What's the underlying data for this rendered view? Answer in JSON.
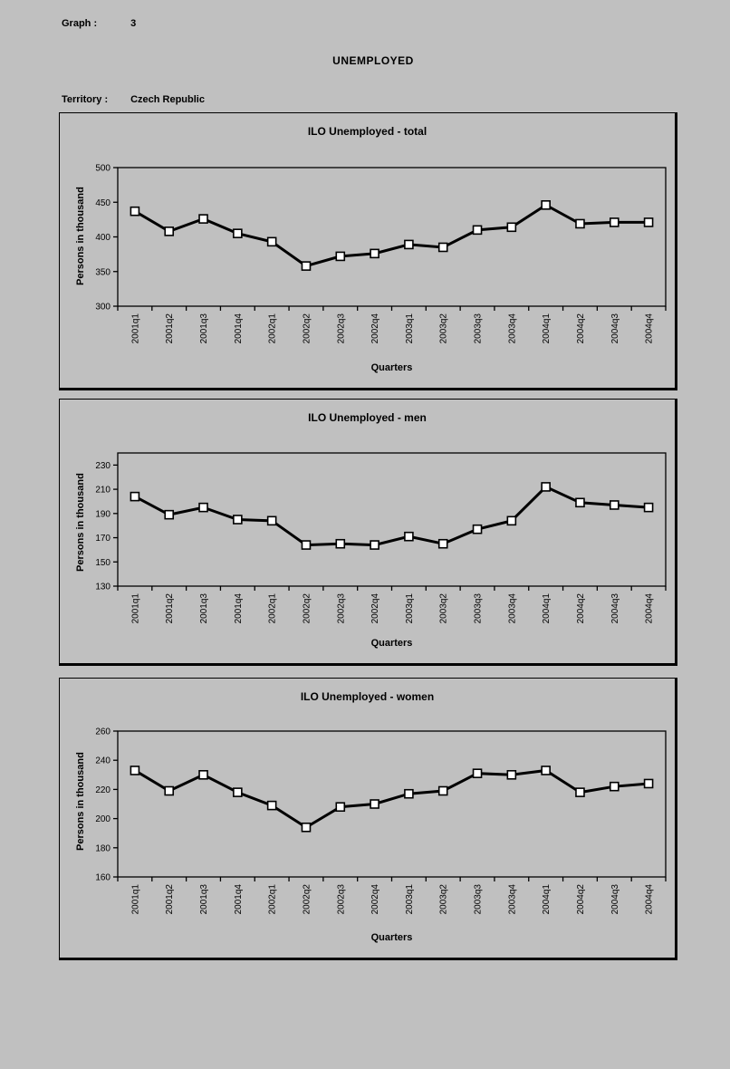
{
  "header": {
    "graph_label": "Graph :",
    "graph_number": "3",
    "title": "UNEMPLOYED",
    "territory_label": "Territory :",
    "territory_value": "Czech Republic"
  },
  "colors": {
    "background": "#c0c0c0",
    "foreground": "#000000",
    "line": "#000000",
    "marker_fill": "#ffffff"
  },
  "chart_data": [
    {
      "type": "line",
      "title": "ILO Unemployed - total",
      "xlabel": "Quarters",
      "ylabel": "Persons in thousand",
      "marker": "square",
      "grid": false,
      "legend": "none",
      "categories": [
        "2001q1",
        "2001q2",
        "2001q3",
        "2001q4",
        "2002q1",
        "2002q2",
        "2002q3",
        "2002q4",
        "2003q1",
        "2003q2",
        "2003q3",
        "2003q4",
        "2004q1",
        "2004q2",
        "2004q3",
        "2004q4"
      ],
      "values": [
        437,
        408,
        426,
        405,
        393,
        358,
        372,
        376,
        389,
        385,
        410,
        414,
        446,
        419,
        421,
        421
      ],
      "ylim": [
        300,
        500
      ],
      "yticks": [
        300,
        350,
        400,
        450,
        500
      ]
    },
    {
      "type": "line",
      "title": "ILO Unemployed - men",
      "xlabel": "Quarters",
      "ylabel": "Persons in thousand",
      "marker": "square",
      "grid": false,
      "legend": "none",
      "categories": [
        "2001q1",
        "2001q2",
        "2001q3",
        "2001q4",
        "2002q1",
        "2002q2",
        "2002q3",
        "2002q4",
        "2003q1",
        "2003q2",
        "2003q3",
        "2003q4",
        "2004q1",
        "2004q2",
        "2004q3",
        "2004q4"
      ],
      "values": [
        204,
        189,
        195,
        185,
        184,
        164,
        165,
        164,
        171,
        165,
        177,
        184,
        212,
        199,
        197,
        195
      ],
      "ylim": [
        130,
        240
      ],
      "yticks": [
        130,
        150,
        170,
        190,
        210,
        230
      ]
    },
    {
      "type": "line",
      "title": "ILO Unemployed - women",
      "xlabel": "Quarters",
      "ylabel": "Persons in thousand",
      "marker": "square",
      "grid": false,
      "legend": "none",
      "categories": [
        "2001q1",
        "2001q2",
        "2001q3",
        "2001q4",
        "2002q1",
        "2002q2",
        "2002q3",
        "2002q4",
        "2003q1",
        "2003q2",
        "2003q3",
        "2003q4",
        "2004q1",
        "2004q2",
        "2004q3",
        "2004q4"
      ],
      "values": [
        233,
        219,
        230,
        218,
        209,
        194,
        208,
        210,
        217,
        219,
        231,
        230,
        233,
        218,
        222,
        224
      ],
      "ylim": [
        160,
        260
      ],
      "yticks": [
        160,
        180,
        200,
        220,
        240,
        260
      ]
    }
  ]
}
